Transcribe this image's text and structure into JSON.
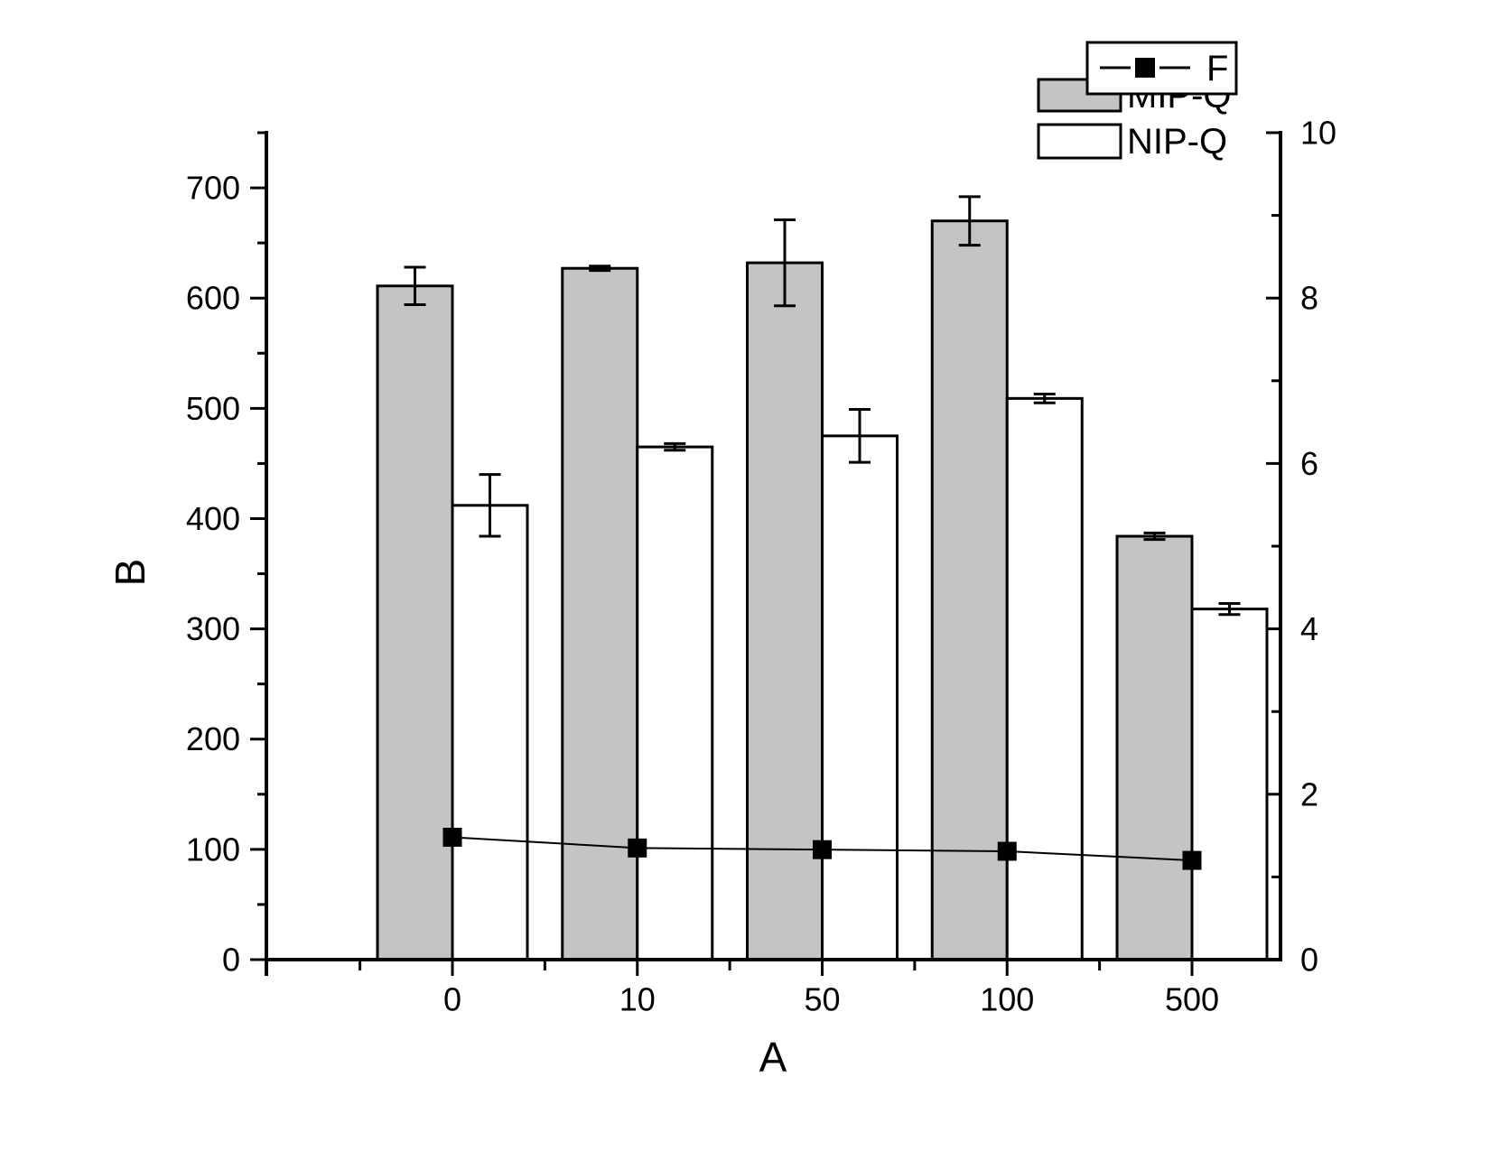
{
  "figure": {
    "background": "#ffffff",
    "axis_color": "#000000",
    "bar_gray": "#C4C4C4",
    "bar_white": "#FFFFFF"
  },
  "legend": {
    "f_label": "F",
    "series1": "MIP-Q",
    "series2": "NIP-Q",
    "position": "top-right"
  },
  "chart_data": {
    "type": "bar",
    "title": "",
    "xlabel": "A",
    "ylabel": "B",
    "ylabel_right": "",
    "categories": [
      "0",
      "10",
      "50",
      "100",
      "500"
    ],
    "x_tick_labels": [
      "0",
      "10",
      "50",
      "100",
      "500"
    ],
    "left_axis": {
      "range": [
        0,
        750
      ],
      "major_tick_step": 100,
      "minor_tick_step": 50,
      "tick_labels": [
        "0",
        "100",
        "200",
        "300",
        "400",
        "500",
        "600",
        "700"
      ],
      "tick_values": [
        0,
        100,
        200,
        300,
        400,
        500,
        600,
        700
      ]
    },
    "right_axis": {
      "range": [
        0,
        10
      ],
      "major_tick_step": 2,
      "minor_tick_step": 1,
      "tick_labels": [
        "0",
        "2",
        "4",
        "6",
        "8",
        "10"
      ],
      "tick_values": [
        0,
        2,
        4,
        6,
        8,
        10
      ]
    },
    "grid": false,
    "series": [
      {
        "name": "MIP-Q",
        "type": "bar",
        "axis": "left",
        "fill": "#C4C4C4",
        "stroke": "#000000",
        "values": [
          611,
          627,
          632,
          670,
          384
        ],
        "errors": [
          17,
          2,
          39,
          22,
          3
        ]
      },
      {
        "name": "NIP-Q",
        "type": "bar",
        "axis": "left",
        "fill": "#FFFFFF",
        "stroke": "#000000",
        "values": [
          412,
          465,
          475,
          509,
          318
        ],
        "errors": [
          28,
          3,
          24,
          4,
          5
        ]
      },
      {
        "name": "F",
        "type": "line",
        "axis": "right",
        "color": "#000000",
        "marker": "square",
        "values": [
          1.48,
          1.35,
          1.33,
          1.31,
          1.2
        ]
      }
    ]
  }
}
